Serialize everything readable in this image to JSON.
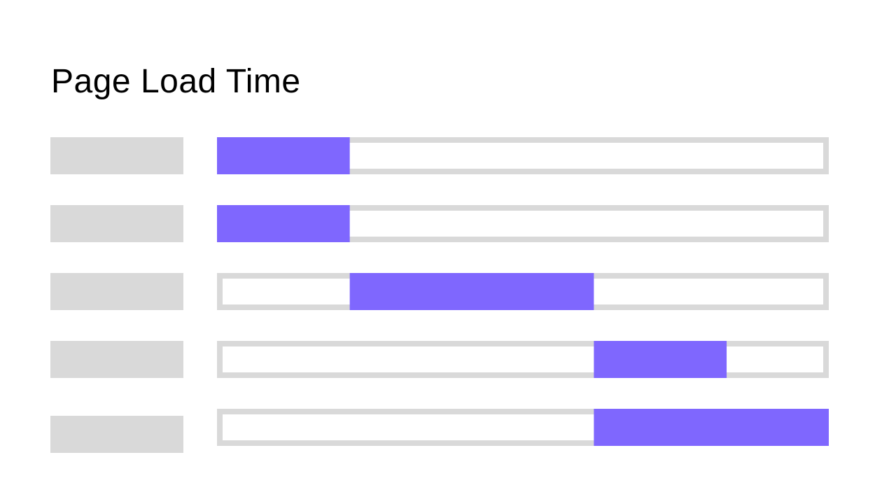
{
  "chart_data": {
    "type": "gantt",
    "title": "Page Load Time",
    "xlim": [
      0,
      1
    ],
    "grid": false,
    "legend": "none",
    "colors": {
      "bar": "#7f67fe",
      "track": "#d9d9d9",
      "placeholder": "#d9d9d9",
      "track_fill": "#ffffff"
    },
    "rows": [
      {
        "start": 0.0,
        "end": 0.217
      },
      {
        "start": 0.0,
        "end": 0.217
      },
      {
        "start": 0.217,
        "end": 0.616
      },
      {
        "start": 0.616,
        "end": 0.833
      },
      {
        "start": 0.616,
        "end": 1.0
      }
    ]
  }
}
